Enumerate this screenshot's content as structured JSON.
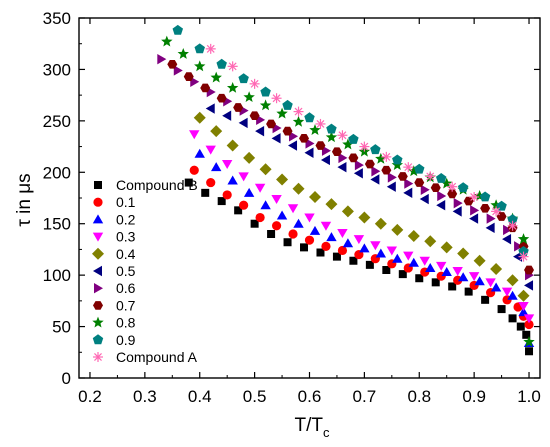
{
  "chart_data": {
    "type": "scatter",
    "xlabel": "T/T",
    "xlabel_sub": "c",
    "ylabel": "τ in μs",
    "xlim": [
      0.18,
      1.02
    ],
    "ylim": [
      0,
      350
    ],
    "xticks": [
      "0.2",
      "0.3",
      "0.4",
      "0.5",
      "0.6",
      "0.7",
      "0.8",
      "0.9",
      "1.0"
    ],
    "yticks": [
      "0",
      "50",
      "100",
      "150",
      "200",
      "250",
      "300",
      "350"
    ],
    "grid": false,
    "legend_position": "left",
    "series": [
      {
        "name": "Compound B",
        "marker": "square",
        "color": "#000000",
        "x": [
          0.38,
          0.41,
          0.44,
          0.47,
          0.5,
          0.53,
          0.56,
          0.59,
          0.62,
          0.65,
          0.68,
          0.71,
          0.74,
          0.77,
          0.8,
          0.83,
          0.86,
          0.89,
          0.92,
          0.95,
          0.97,
          0.985,
          0.995,
          1.0
        ],
        "y": [
          190,
          180,
          172,
          163,
          150,
          140,
          132,
          127,
          122,
          118,
          114,
          110,
          105,
          101,
          97,
          93,
          89,
          84,
          76,
          67,
          58,
          50,
          42,
          26
        ]
      },
      {
        "name": "0.1",
        "marker": "circle",
        "color": "#ff0000",
        "x": [
          0.39,
          0.42,
          0.45,
          0.48,
          0.51,
          0.54,
          0.57,
          0.6,
          0.63,
          0.66,
          0.69,
          0.72,
          0.75,
          0.78,
          0.81,
          0.84,
          0.87,
          0.9,
          0.93,
          0.96,
          0.98,
          0.99,
          1.0
        ],
        "y": [
          202,
          190,
          178,
          168,
          156,
          148,
          140,
          134,
          128,
          124,
          120,
          116,
          111,
          107,
          103,
          99,
          95,
          90,
          83,
          76,
          69,
          60,
          52
        ]
      },
      {
        "name": "0.2",
        "marker": "triangle-up",
        "color": "#0000ff",
        "x": [
          0.4,
          0.43,
          0.46,
          0.49,
          0.52,
          0.55,
          0.58,
          0.61,
          0.64,
          0.67,
          0.7,
          0.73,
          0.76,
          0.79,
          0.82,
          0.85,
          0.88,
          0.91,
          0.94,
          0.97,
          0.99,
          1.0
        ],
        "y": [
          218,
          205,
          192,
          180,
          168,
          158,
          150,
          143,
          137,
          131,
          126,
          121,
          116,
          112,
          107,
          103,
          98,
          94,
          88,
          80,
          64,
          34
        ]
      },
      {
        "name": "0.3",
        "marker": "triangle-down",
        "color": "#ff00ff",
        "x": [
          0.39,
          0.42,
          0.45,
          0.48,
          0.51,
          0.54,
          0.57,
          0.6,
          0.63,
          0.66,
          0.69,
          0.72,
          0.75,
          0.78,
          0.81,
          0.84,
          0.87,
          0.9,
          0.93,
          0.96,
          0.99,
          1.0
        ],
        "y": [
          237,
          222,
          208,
          196,
          185,
          174,
          165,
          156,
          148,
          141,
          135,
          129,
          124,
          119,
          114,
          109,
          104,
          99,
          93,
          84,
          70,
          58
        ]
      },
      {
        "name": "0.4",
        "marker": "diamond",
        "color": "#808000",
        "x": [
          0.4,
          0.43,
          0.46,
          0.49,
          0.52,
          0.55,
          0.58,
          0.61,
          0.64,
          0.67,
          0.7,
          0.73,
          0.76,
          0.79,
          0.82,
          0.85,
          0.88,
          0.91,
          0.94,
          0.97,
          0.99
        ],
        "y": [
          253,
          240,
          226,
          214,
          203,
          193,
          184,
          176,
          169,
          162,
          156,
          150,
          144,
          138,
          133,
          127,
          121,
          114,
          106,
          95,
          80
        ]
      },
      {
        "name": "0.5",
        "marker": "triangle-left",
        "color": "#000080",
        "x": [
          0.42,
          0.45,
          0.48,
          0.51,
          0.54,
          0.57,
          0.6,
          0.63,
          0.66,
          0.69,
          0.72,
          0.75,
          0.78,
          0.81,
          0.84,
          0.87,
          0.9,
          0.93,
          0.96,
          0.98,
          1.0
        ],
        "y": [
          262,
          255,
          248,
          240,
          233,
          226,
          219,
          212,
          205,
          199,
          193,
          186,
          180,
          174,
          168,
          162,
          155,
          146,
          135,
          118,
          90
        ]
      },
      {
        "name": "0.6",
        "marker": "triangle-right",
        "color": "#800080",
        "x": [
          0.33,
          0.36,
          0.39,
          0.42,
          0.45,
          0.48,
          0.51,
          0.54,
          0.57,
          0.6,
          0.63,
          0.66,
          0.69,
          0.72,
          0.75,
          0.78,
          0.81,
          0.84,
          0.87,
          0.9,
          0.93,
          0.96,
          0.98,
          1.0
        ],
        "y": [
          310,
          299,
          288,
          278,
          269,
          260,
          251,
          243,
          235,
          228,
          221,
          214,
          207,
          201,
          195,
          189,
          183,
          177,
          170,
          163,
          155,
          144,
          128,
          100
        ]
      },
      {
        "name": "0.7",
        "marker": "hexagon",
        "color": "#800000",
        "x": [
          0.35,
          0.38,
          0.41,
          0.44,
          0.47,
          0.5,
          0.53,
          0.56,
          0.59,
          0.62,
          0.65,
          0.68,
          0.71,
          0.74,
          0.77,
          0.8,
          0.83,
          0.86,
          0.89,
          0.92,
          0.95,
          0.97,
          0.99,
          1.0
        ],
        "y": [
          305,
          293,
          282,
          272,
          263,
          255,
          247,
          240,
          233,
          226,
          220,
          214,
          208,
          202,
          196,
          190,
          185,
          179,
          172,
          165,
          157,
          146,
          128,
          105
        ]
      },
      {
        "name": "0.8",
        "marker": "star",
        "color": "#008000",
        "x": [
          0.34,
          0.37,
          0.4,
          0.43,
          0.46,
          0.49,
          0.52,
          0.55,
          0.58,
          0.61,
          0.64,
          0.67,
          0.7,
          0.73,
          0.76,
          0.79,
          0.82,
          0.85,
          0.88,
          0.91,
          0.94,
          0.97,
          0.99,
          1.0
        ],
        "y": [
          327,
          315,
          303,
          292,
          282,
          273,
          265,
          257,
          249,
          241,
          234,
          227,
          220,
          213,
          207,
          201,
          195,
          189,
          183,
          177,
          168,
          155,
          135,
          35
        ]
      },
      {
        "name": "0.9",
        "marker": "pentagon",
        "color": "#008080",
        "x": [
          0.36,
          0.4,
          0.44,
          0.48,
          0.52,
          0.56,
          0.6,
          0.64,
          0.68,
          0.72,
          0.76,
          0.8,
          0.84,
          0.88,
          0.92,
          0.95,
          0.97,
          0.99
        ],
        "y": [
          338,
          320,
          305,
          291,
          278,
          265,
          253,
          242,
          232,
          222,
          212,
          203,
          194,
          185,
          176,
          167,
          154,
          123
        ]
      },
      {
        "name": "Compound A",
        "marker": "asterisk",
        "color": "#ff69b4",
        "x": [
          0.42,
          0.46,
          0.5,
          0.54,
          0.58,
          0.62,
          0.66,
          0.7,
          0.74,
          0.78,
          0.82,
          0.86,
          0.9,
          0.94,
          0.97,
          0.99
        ],
        "y": [
          320,
          303,
          286,
          272,
          259,
          247,
          236,
          225,
          215,
          205,
          196,
          186,
          176,
          162,
          148,
          118
        ]
      }
    ]
  }
}
